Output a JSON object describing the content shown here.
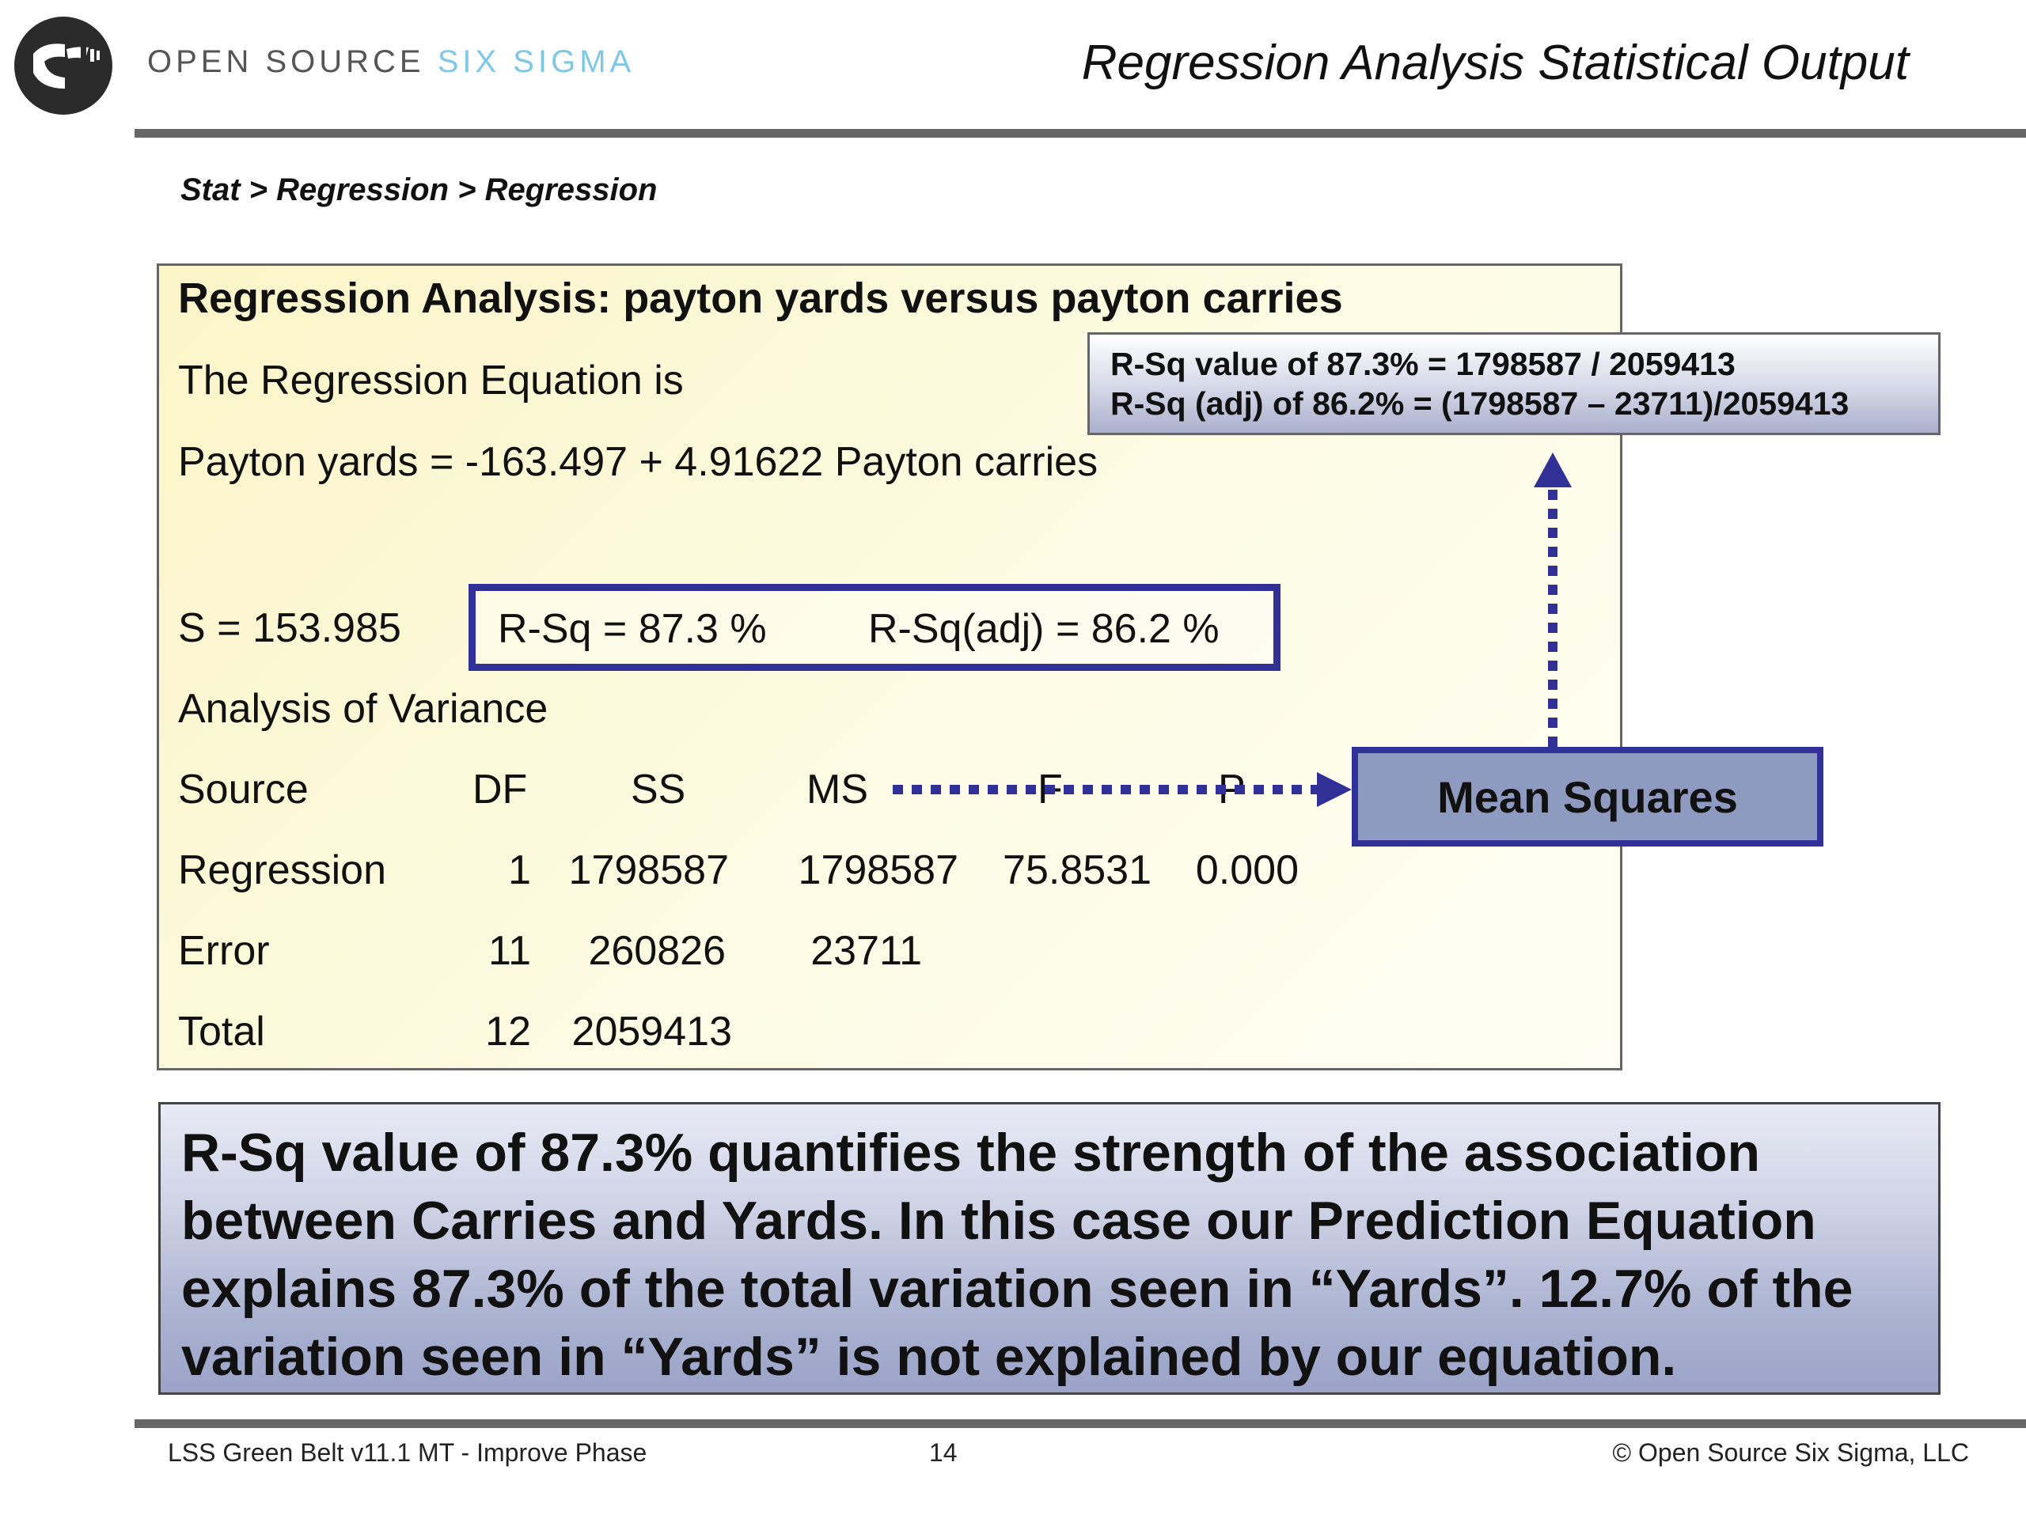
{
  "header": {
    "brand_main": "OPEN SOURCE ",
    "brand_accent": "SIX SIGMA",
    "title": "Regression Analysis Statistical Output",
    "accent_color": "#7fc8e4"
  },
  "menu_path": "Stat > Regression > Regression",
  "output": {
    "heading": "Regression Analysis: payton yards versus payton carries",
    "equation_label": "The Regression Equation is",
    "equation": "Payton yards = -163.497 + 4.91622 Payton carries",
    "s_stat": "S = 153.985",
    "rsq": "R-Sq = 87.3 %",
    "rsq_adj": "R-Sq(adj) = 86.2 %",
    "anova_title": "Analysis of Variance",
    "columns": [
      "Source",
      "DF",
      "SS",
      "MS",
      "F",
      "P"
    ],
    "rows": [
      [
        "Regression",
        "1",
        "1798587",
        "1798587",
        "75.8531",
        "0.000"
      ],
      [
        "Error",
        "11",
        "260826",
        "23711",
        "",
        ""
      ],
      [
        "Total",
        "12",
        "2059413",
        "",
        "",
        ""
      ]
    ]
  },
  "callout": {
    "line1": "R-Sq value of 87.3% = 1798587 / 2059413",
    "line2": "R-Sq (adj) of 86.2% = (1798587 – 23711)/2059413"
  },
  "mean_squares_label": "Mean Squares",
  "summary": "R-Sq value of 87.3% quantifies the strength of the association between Carries and Yards.  In this case our Prediction Equation explains 87.3% of the total variation seen in “Yards”.  12.7% of the variation seen in “Yards” is not explained by our equation.",
  "footer": {
    "left": "LSS Green Belt v11.1 MT - Improve Phase",
    "page": "14",
    "right": "© Open Source Six Sigma, LLC"
  },
  "colors": {
    "arrow": "#303096",
    "panel_bg": "#fcf8d2",
    "mean_squares_bg": "#8e9abf"
  }
}
